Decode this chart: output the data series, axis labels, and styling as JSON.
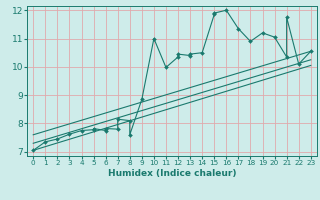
{
  "xlabel": "Humidex (Indice chaleur)",
  "xlim": [
    -0.5,
    23.5
  ],
  "ylim": [
    6.85,
    12.15
  ],
  "bg_color": "#ceecea",
  "line_color": "#1a7a6e",
  "grid_color": "#e0aaad",
  "x_ticks": [
    0,
    1,
    2,
    3,
    4,
    5,
    6,
    7,
    8,
    9,
    10,
    11,
    12,
    13,
    14,
    15,
    16,
    17,
    18,
    19,
    20,
    21,
    22,
    23
  ],
  "y_ticks": [
    7,
    8,
    9,
    10,
    11,
    12
  ],
  "data_x": [
    0,
    1,
    2,
    3,
    4,
    5,
    5,
    6,
    6,
    7,
    7,
    8,
    8,
    9,
    10,
    11,
    12,
    12,
    13,
    13,
    14,
    15,
    15,
    16,
    17,
    18,
    19,
    20,
    21,
    21,
    22,
    23
  ],
  "data_y": [
    7.05,
    7.35,
    7.45,
    7.62,
    7.75,
    7.78,
    7.82,
    7.75,
    7.82,
    7.8,
    8.15,
    8.1,
    7.6,
    8.85,
    11.0,
    9.98,
    10.35,
    10.45,
    10.4,
    10.45,
    10.5,
    11.85,
    11.9,
    12.0,
    11.35,
    10.9,
    11.2,
    11.05,
    10.35,
    11.75,
    10.1,
    10.55
  ],
  "line1_x": [
    0,
    23
  ],
  "line1_y": [
    7.05,
    10.05
  ],
  "line2_x": [
    0,
    23
  ],
  "line2_y": [
    7.3,
    10.25
  ],
  "line3_x": [
    0,
    23
  ],
  "line3_y": [
    7.6,
    10.55
  ]
}
